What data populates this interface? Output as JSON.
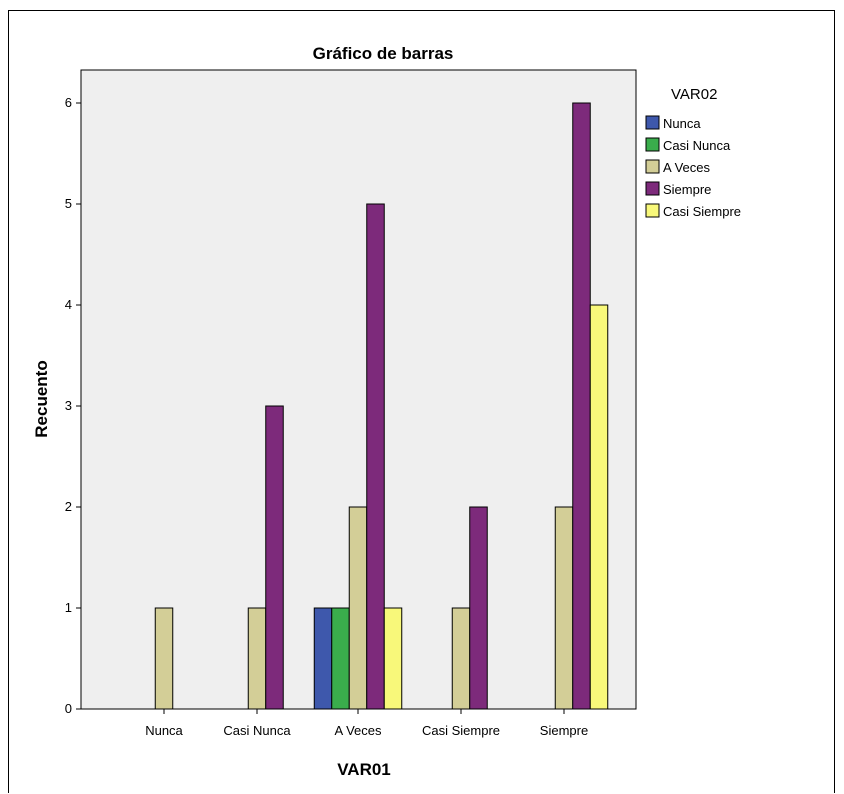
{
  "chart_data": {
    "type": "bar",
    "title": "Gráfico de barras",
    "xlabel": "VAR01",
    "ylabel": "Recuento",
    "categories": [
      "Nunca",
      "Casi Nunca",
      "A Veces",
      "Casi Siempre",
      "Siempre"
    ],
    "legend_title": "VAR02",
    "legend_position": "right",
    "ylim": [
      0,
      6
    ],
    "yticks": [
      0,
      1,
      2,
      3,
      4,
      5,
      6
    ],
    "grid": false,
    "plot_background": "#efefef",
    "series": [
      {
        "name": "Nunca",
        "color": "#3e58ac",
        "values": [
          0,
          0,
          1,
          0,
          0
        ]
      },
      {
        "name": "Casi Nunca",
        "color": "#3aad4c",
        "values": [
          0,
          0,
          1,
          0,
          0
        ]
      },
      {
        "name": "A Veces",
        "color": "#d3ce97",
        "values": [
          1,
          1,
          2,
          1,
          2
        ]
      },
      {
        "name": "Siempre",
        "color": "#7d2a7b",
        "values": [
          0,
          3,
          5,
          2,
          6
        ]
      },
      {
        "name": "Casi Siempre",
        "color": "#f8f87a",
        "values": [
          0,
          0,
          1,
          0,
          4
        ]
      }
    ]
  }
}
